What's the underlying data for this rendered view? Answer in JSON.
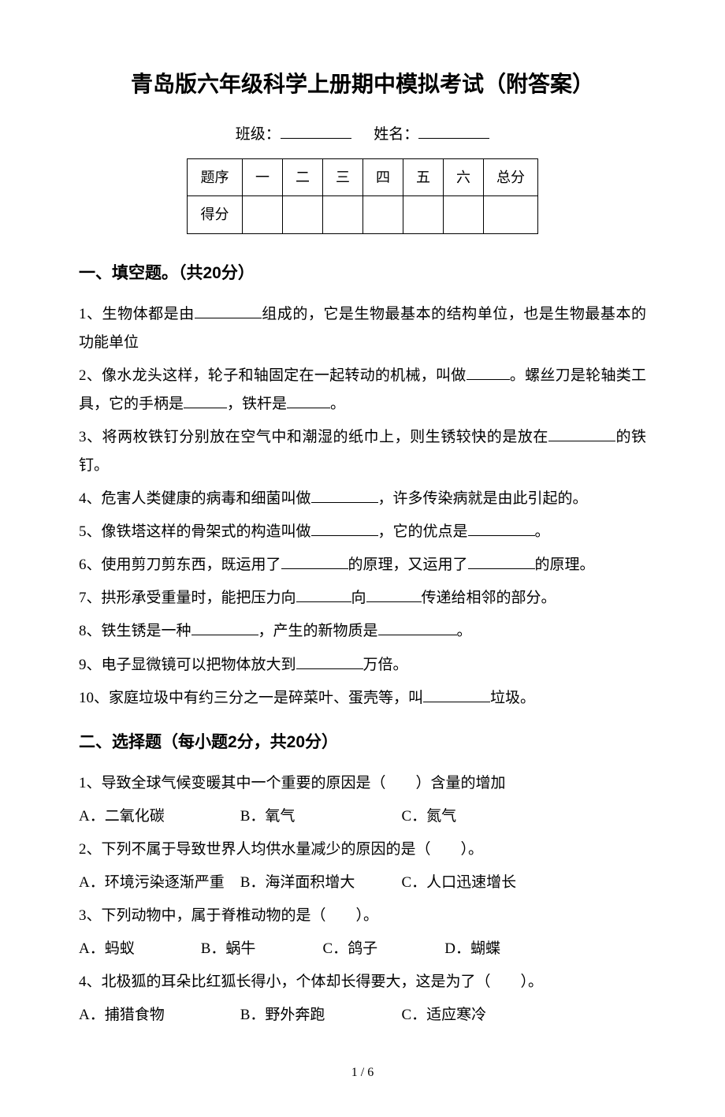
{
  "title": "青岛版六年级科学上册期中模拟考试（附答案）",
  "header": {
    "class_label": "班级：",
    "name_label": "姓名："
  },
  "score_table": {
    "row1": [
      "题序",
      "一",
      "二",
      "三",
      "四",
      "五",
      "六",
      "总分"
    ],
    "row2_label": "得分"
  },
  "section1": {
    "heading": "一、填空题。（共20分）",
    "q1_a": "1、生物体都是由",
    "q1_b": "组成的，它是生物最基本的结构单位，也是生物最基本的功能单位",
    "q2_a": "2、像水龙头这样，轮子和轴固定在一起转动的机械，叫做",
    "q2_b": "。螺丝刀是轮轴类工具，它的手柄是",
    "q2_c": "，铁杆是",
    "q2_d": "。",
    "q3_a": "3、将两枚铁钉分别放在空气中和潮湿的纸巾上，则生锈较快的是放在",
    "q3_b": "的铁钉。",
    "q4_a": "4、危害人类健康的病毒和细菌叫做",
    "q4_b": "，许多传染病就是由此引起的。",
    "q5_a": "5、像铁塔这样的骨架式的构造叫做",
    "q5_b": "，它的优点是",
    "q5_c": "。",
    "q6_a": "6、使用剪刀剪东西，既运用了",
    "q6_b": "的原理，又运用了",
    "q6_c": "的原理。",
    "q7_a": "7、拱形承受重量时，能把压力向",
    "q7_b": "向",
    "q7_c": "传递给相邻的部分。",
    "q8_a": "8、铁生锈是一种",
    "q8_b": "，产生的新物质是",
    "q8_c": "。",
    "q9_a": "9、电子显微镜可以把物体放大到",
    "q9_b": "万倍。",
    "q10_a": "10、家庭垃圾中有约三分之一是碎菜叶、蛋壳等，叫",
    "q10_b": "垃圾。"
  },
  "section2": {
    "heading": "二、选择题（每小题2分，共20分）",
    "q1": "1、导致全球气候变暖其中一个重要的原因是（　　）含量的增加",
    "q1_opts": {
      "a": "A．二氧化碳",
      "b": "B．氧气",
      "c": "C．氮气"
    },
    "q2": "2、下列不属于导致世界人均供水量减少的原因的是（　　）。",
    "q2_opts": {
      "a": "A．环境污染逐渐严重",
      "b": "B．海洋面积增大",
      "c": "C．人口迅速增长"
    },
    "q3": "3、下列动物中，属于脊椎动物的是（　　）。",
    "q3_opts": {
      "a": "A．蚂蚁",
      "b": "B．蜗牛",
      "c": "C．鸽子",
      "d": "D．蝴蝶"
    },
    "q4": "4、北极狐的耳朵比红狐长得小，个体却长得要大，这是为了（　　）。",
    "q4_opts": {
      "a": "A．捕猎食物",
      "b": "B．野外奔跑",
      "c": "C．适应寒冷"
    }
  },
  "page_number": "1 / 6"
}
